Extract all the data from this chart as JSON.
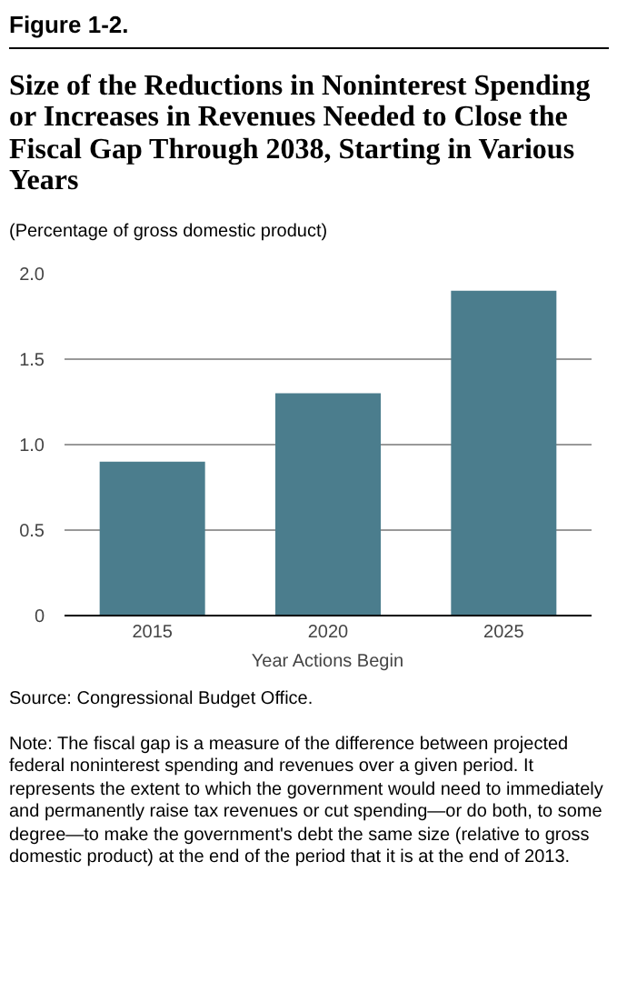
{
  "chart_data": {
    "type": "bar",
    "title": "Size of the Reductions in Noninterest Spending or Increases in Revenues Needed to Close the Fiscal Gap Through 2038, Starting in Various Years",
    "subtitle": "(Percentage of gross domestic product)",
    "xlabel": "Year Actions Begin",
    "categories": [
      "2015",
      "2020",
      "2025"
    ],
    "values": [
      0.9,
      1.3,
      1.9
    ],
    "color": "#4b7d8d",
    "ylim": [
      0,
      2.0
    ],
    "yticks": [
      0,
      0.5,
      {
        "value": 1.0,
        "label": "1.0"
      },
      1.5,
      {
        "value": 2.0,
        "label": "2.0"
      }
    ],
    "grid": "y",
    "annotations": [
      "Figure 1-2.",
      "Source: Congressional Budget Office.",
      "Note: The fiscal gap is a measure of the difference between projected federal noninterest spending and revenues over a given period. It represents the extent to which the government would need to immediately and permanently raise tax revenues or cut spending—or do both, to some degree—to make the government's debt the same size (relative to gross domestic product) at the end of the period that it is at the end of 2013."
    ]
  }
}
